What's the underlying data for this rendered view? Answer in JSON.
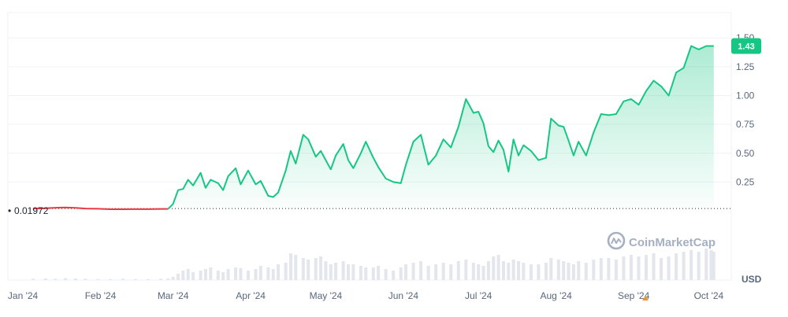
{
  "chart_data": {
    "type": "area",
    "currency_label": "USD",
    "baseline_label": "0.01972",
    "baseline_value": 0.01972,
    "current_price_label": "1.43",
    "current_price": 1.43,
    "watermark": "CoinMarketCap",
    "y_ticks": [
      0.25,
      0.5,
      0.75,
      1.0,
      1.25,
      1.5
    ],
    "y_tick_labels": [
      "0.25",
      "0.50",
      "0.75",
      "1.00",
      "1.25",
      "1.50"
    ],
    "ylim": [
      -0.6,
      1.72
    ],
    "x_ticks": [
      {
        "label": "Jan '24",
        "date": "2024-01-01"
      },
      {
        "label": "Feb '24",
        "date": "2024-02-01"
      },
      {
        "label": "Mar '24",
        "date": "2024-03-01"
      },
      {
        "label": "Apr '24",
        "date": "2024-04-01"
      },
      {
        "label": "May '24",
        "date": "2024-05-01"
      },
      {
        "label": "Jun '24",
        "date": "2024-06-01"
      },
      {
        "label": "Jul '24",
        "date": "2024-07-01"
      },
      {
        "label": "Aug '24",
        "date": "2024-08-01"
      },
      {
        "label": "Sep '24",
        "date": "2024-09-01"
      },
      {
        "label": "Oct '24",
        "date": "2024-10-01"
      }
    ],
    "xlim": [
      "2023-12-26",
      "2024-10-10"
    ],
    "colors": {
      "up": "#16c784",
      "down": "#ea3943",
      "grid": "#eff2f5",
      "axis_text": "#58667e",
      "volume": "#e3e6ec",
      "badge": "#16c784"
    },
    "series": [
      {
        "x": [
          "2024-01-05",
          "2024-01-10",
          "2024-01-14",
          "2024-01-18",
          "2024-01-22",
          "2024-01-26",
          "2024-01-31",
          "2024-02-05",
          "2024-02-10",
          "2024-02-15",
          "2024-02-20",
          "2024-02-25",
          "2024-02-28",
          "2024-03-01",
          "2024-03-03",
          "2024-03-05",
          "2024-03-07",
          "2024-03-09",
          "2024-03-12",
          "2024-03-14",
          "2024-03-16",
          "2024-03-19",
          "2024-03-21",
          "2024-03-23",
          "2024-03-26",
          "2024-03-28",
          "2024-03-31",
          "2024-04-03",
          "2024-04-05",
          "2024-04-08",
          "2024-04-10",
          "2024-04-12",
          "2024-04-15",
          "2024-04-17",
          "2024-04-19",
          "2024-04-22",
          "2024-04-24",
          "2024-04-27",
          "2024-04-29",
          "2024-05-01",
          "2024-05-03",
          "2024-05-05",
          "2024-05-08",
          "2024-05-10",
          "2024-05-12",
          "2024-05-15",
          "2024-05-17",
          "2024-05-20",
          "2024-05-22",
          "2024-05-25",
          "2024-05-28",
          "2024-05-31",
          "2024-06-02",
          "2024-06-05",
          "2024-06-08",
          "2024-06-11",
          "2024-06-14",
          "2024-06-17",
          "2024-06-20",
          "2024-06-23",
          "2024-06-26",
          "2024-06-29",
          "2024-07-01",
          "2024-07-03",
          "2024-07-05",
          "2024-07-07",
          "2024-07-09",
          "2024-07-11",
          "2024-07-13",
          "2024-07-15",
          "2024-07-17",
          "2024-07-19",
          "2024-07-22",
          "2024-07-25",
          "2024-07-28",
          "2024-07-30",
          "2024-08-02",
          "2024-08-04",
          "2024-08-06",
          "2024-08-08",
          "2024-08-10",
          "2024-08-13",
          "2024-08-16",
          "2024-08-19",
          "2024-08-22",
          "2024-08-25",
          "2024-08-28",
          "2024-08-31",
          "2024-09-03",
          "2024-09-06",
          "2024-09-09",
          "2024-09-12",
          "2024-09-15",
          "2024-09-18",
          "2024-09-21",
          "2024-09-24",
          "2024-09-27",
          "2024-09-30",
          "2024-10-02",
          "2024-10-03"
        ],
        "y": [
          0.019,
          0.022,
          0.027,
          0.03,
          0.026,
          0.02,
          0.018,
          0.014,
          0.014,
          0.015,
          0.015,
          0.017,
          0.017,
          0.06,
          0.18,
          0.19,
          0.27,
          0.22,
          0.33,
          0.2,
          0.27,
          0.24,
          0.18,
          0.3,
          0.37,
          0.23,
          0.35,
          0.23,
          0.26,
          0.13,
          0.12,
          0.16,
          0.35,
          0.52,
          0.41,
          0.66,
          0.62,
          0.47,
          0.52,
          0.44,
          0.36,
          0.48,
          0.58,
          0.44,
          0.37,
          0.5,
          0.6,
          0.46,
          0.38,
          0.28,
          0.25,
          0.24,
          0.4,
          0.6,
          0.66,
          0.4,
          0.48,
          0.62,
          0.55,
          0.73,
          0.97,
          0.85,
          0.86,
          0.76,
          0.56,
          0.51,
          0.61,
          0.53,
          0.34,
          0.62,
          0.48,
          0.57,
          0.52,
          0.44,
          0.46,
          0.8,
          0.74,
          0.73,
          0.61,
          0.48,
          0.6,
          0.48,
          0.68,
          0.84,
          0.83,
          0.84,
          0.95,
          0.97,
          0.92,
          1.04,
          1.13,
          1.08,
          1.0,
          1.2,
          1.24,
          1.43,
          1.4,
          1.43,
          1.43,
          1.43
        ]
      }
    ],
    "volume": [
      0.04,
      0.05,
      0.04,
      0.06,
      0.05,
      0.04,
      0.03,
      0.03,
      0.04,
      0.03,
      0.03,
      0.04,
      0.05,
      0.1,
      0.2,
      0.3,
      0.35,
      0.25,
      0.3,
      0.35,
      0.4,
      0.3,
      0.25,
      0.35,
      0.4,
      0.38,
      0.3,
      0.35,
      0.45,
      0.4,
      0.35,
      0.5,
      0.55,
      0.85,
      0.8,
      0.7,
      0.65,
      0.7,
      0.75,
      0.6,
      0.5,
      0.55,
      0.6,
      0.5,
      0.5,
      0.45,
      0.4,
      0.4,
      0.45,
      0.35,
      0.3,
      0.4,
      0.5,
      0.55,
      0.6,
      0.45,
      0.5,
      0.55,
      0.5,
      0.6,
      0.65,
      0.55,
      0.5,
      0.45,
      0.6,
      0.75,
      0.8,
      0.6,
      0.55,
      0.65,
      0.6,
      0.55,
      0.5,
      0.5,
      0.55,
      0.7,
      0.65,
      0.6,
      0.55,
      0.5,
      0.6,
      0.55,
      0.65,
      0.7,
      0.7,
      0.65,
      0.75,
      0.8,
      0.75,
      0.8,
      0.85,
      0.7,
      0.75,
      0.85,
      0.9,
      0.95,
      0.9,
      1.0,
      0.95,
      0.9
    ]
  }
}
